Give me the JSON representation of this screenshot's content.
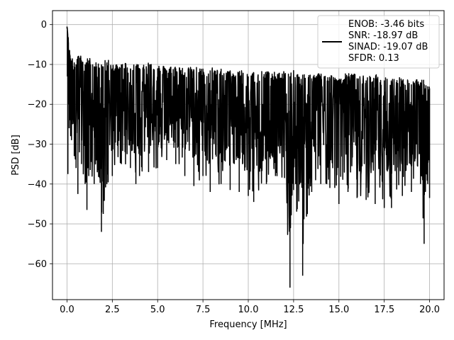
{
  "chart_data": {
    "type": "line",
    "xlabel": "Frequency [MHz]",
    "ylabel": "PSD [dB]",
    "xlim": [
      -0.8,
      20.8
    ],
    "ylim": [
      -69,
      3.5
    ],
    "xticks": [
      0.0,
      2.5,
      5.0,
      7.5,
      10.0,
      12.5,
      15.0,
      17.5,
      20.0
    ],
    "xtick_labels": [
      "0.0",
      "2.5",
      "5.0",
      "7.5",
      "10.0",
      "12.5",
      "15.0",
      "17.5",
      "20.0"
    ],
    "yticks": [
      0,
      -10,
      -20,
      -30,
      -40,
      -50,
      -60
    ],
    "ytick_labels": [
      "0",
      "−10",
      "−20",
      "−30",
      "−40",
      "−50",
      "−60"
    ],
    "grid": true,
    "legend_position": "top-right",
    "line_color": "#000000",
    "legend": {
      "entries": [
        "ENOB: -3.46 bits",
        "SNR: -18.97 dB",
        "SINAD: -19.07 dB",
        "SFDR: 0.13"
      ]
    },
    "series": [
      {
        "x": [
          0.0,
          0.02,
          0.05,
          0.08,
          0.12,
          0.16,
          0.2,
          0.25,
          0.3,
          0.4,
          0.5,
          0.6,
          0.8,
          1.0,
          1.1,
          1.2,
          1.5,
          1.9,
          2.0,
          2.2,
          2.5,
          3.0,
          3.5,
          3.8,
          4.0,
          4.5,
          5.0,
          5.5,
          6.0,
          6.5,
          7.0,
          7.5,
          7.9,
          8.5,
          9.0,
          9.5,
          10.0,
          10.3,
          11.0,
          11.5,
          12.0,
          12.3,
          12.5,
          13.0,
          13.5,
          14.0,
          14.5,
          15.0,
          15.5,
          16.0,
          16.5,
          17.0,
          17.5,
          17.9,
          18.5,
          19.0,
          19.5,
          19.7,
          19.9,
          20.0
        ],
        "y_upper": [
          -0.5,
          -1.0,
          -3.0,
          -4.5,
          -6.5,
          -7.5,
          -8.5,
          -9.0,
          -8.5,
          -9.5,
          -10.0,
          -8.0,
          -9.0,
          -10.0,
          -9.5,
          -9.0,
          -10.5,
          -10.0,
          -10.5,
          -9.5,
          -11.0,
          -10.0,
          -11.0,
          -10.5,
          -11.0,
          -10.0,
          -11.0,
          -11.5,
          -11.0,
          -12.0,
          -11.5,
          -12.0,
          -11.5,
          -12.0,
          -12.5,
          -12.0,
          -13.0,
          -12.0,
          -12.5,
          -13.0,
          -12.5,
          -13.0,
          -12.5,
          -13.0,
          -13.5,
          -13.0,
          -13.5,
          -14.0,
          -13.0,
          -13.5,
          -14.0,
          -13.5,
          -14.0,
          -14.5,
          -14.0,
          -15.0,
          -14.5,
          -15.0,
          -15.5,
          -16.0
        ],
        "y_lower": [
          -1.0,
          -13.0,
          -37.5,
          -20.0,
          -26.0,
          -24.0,
          -28.0,
          -29.0,
          -25.0,
          -33.0,
          -36.0,
          -42.5,
          -35.0,
          -40.0,
          -46.5,
          -38.0,
          -40.0,
          -52.0,
          -47.5,
          -40.0,
          -38.0,
          -35.0,
          -36.0,
          -40.0,
          -38.0,
          -37.0,
          -36.0,
          -34.0,
          -35.0,
          -38.0,
          -40.5,
          -38.0,
          -42.0,
          -40.0,
          -41.5,
          -42.0,
          -43.0,
          -44.5,
          -40.0,
          -38.0,
          -38.5,
          -66.0,
          -41.5,
          -63.0,
          -42.0,
          -40.0,
          -41.0,
          -45.0,
          -42.0,
          -43.5,
          -44.0,
          -45.0,
          -46.0,
          -46.0,
          -43.0,
          -42.0,
          -40.0,
          -55.0,
          -40.0,
          -43.5
        ]
      }
    ]
  }
}
